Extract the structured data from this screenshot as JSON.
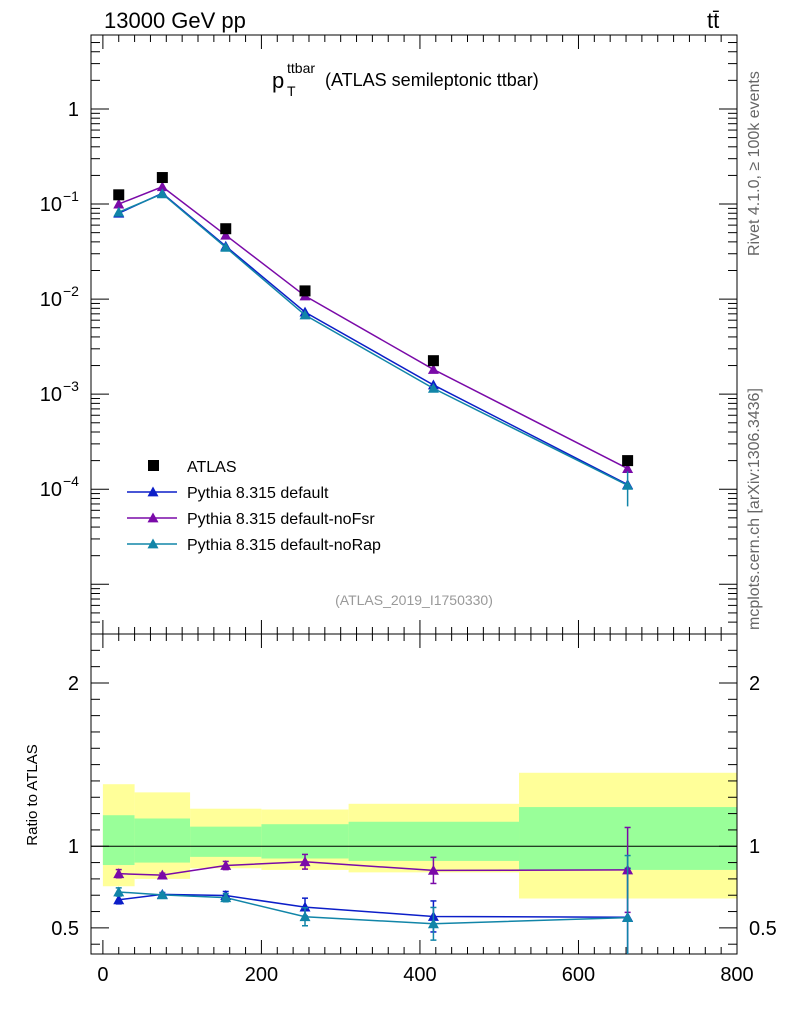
{
  "header": {
    "left": "13000 GeV pp",
    "right": "tt̄"
  },
  "sidebar": {
    "rivet": "Rivet 4.1.0, ≥ 100k events",
    "mcplots": "mcplots.cern.ch [arXiv:1306.3436]"
  },
  "chart_data": {
    "type": "line",
    "title_main": "p",
    "title_sup": "ttbar",
    "title_sub": "T",
    "title_rest": "(ATLAS semileptonic ttbar)",
    "analysis_label": "(ATLAS_2019_I1750330)",
    "xlim": [
      -15,
      800
    ],
    "xticks": [
      0,
      200,
      400,
      600,
      800
    ],
    "xtick_labels": [
      "0",
      "200",
      "400",
      "600",
      "800"
    ],
    "ylim_top": [
      3e-06,
      6
    ],
    "ytick_labels_top": [
      "10^-4",
      "10^-3",
      "10^-2",
      "10^-1",
      "1"
    ],
    "ytick_values_top": [
      0.0001,
      0.001,
      0.01,
      0.1,
      1
    ],
    "ylim_ratio": [
      0.34,
      2.3
    ],
    "yticks_ratio": [
      0.5,
      1,
      2
    ],
    "ytick_labels_ratio": [
      "0.5",
      "1",
      "2"
    ],
    "ratio_ylabel": "Ratio to ATLAS",
    "bins": [
      {
        "lo": 0,
        "hi": 40
      },
      {
        "lo": 40,
        "hi": 110
      },
      {
        "lo": 110,
        "hi": 200
      },
      {
        "lo": 200,
        "hi": 310
      },
      {
        "lo": 310,
        "hi": 525
      },
      {
        "lo": 525,
        "hi": 800
      }
    ],
    "x": [
      20,
      75,
      155,
      255,
      417,
      662
    ],
    "data": {
      "name": "ATLAS",
      "color": "#000000",
      "values": [
        0.125,
        0.19,
        0.055,
        0.0122,
        0.00225,
        0.0002
      ]
    },
    "series": [
      {
        "name": "Pythia 8.315 default",
        "color": "#0c1ec8",
        "values": [
          0.08,
          0.13,
          0.036,
          0.0073,
          0.00125,
          0.000112
        ],
        "ratio": [
          0.672,
          0.705,
          0.698,
          0.627,
          0.57,
          0.565
        ],
        "ratio_err": [
          0.025,
          0.012,
          0.025,
          0.055,
          0.095,
          0.3
        ]
      },
      {
        "name": "Pythia 8.315 default-noFsr",
        "color": "#7a0aa8",
        "values": [
          0.1,
          0.152,
          0.047,
          0.0108,
          0.00182,
          0.000165
        ],
        "ratio": [
          0.832,
          0.823,
          0.882,
          0.905,
          0.852,
          0.855
        ],
        "ratio_err": [
          0.025,
          0.012,
          0.025,
          0.045,
          0.08,
          0.26
        ]
      },
      {
        "name": "Pythia 8.315 default-noRap",
        "color": "#1185a8",
        "values": [
          0.082,
          0.128,
          0.035,
          0.0068,
          0.00115,
          0.00011
        ],
        "ratio": [
          0.72,
          0.702,
          0.685,
          0.568,
          0.525,
          0.563
        ],
        "ratio_err": [
          0.025,
          0.012,
          0.025,
          0.055,
          0.1,
          0.38
        ]
      }
    ],
    "bands": {
      "outer_color": "#ffff99",
      "inner_color": "#99ff99",
      "inner": [
        [
          0.885,
          1.19
        ],
        [
          0.9,
          1.17
        ],
        [
          0.935,
          1.12
        ],
        [
          0.925,
          1.135
        ],
        [
          0.91,
          1.15
        ],
        [
          0.855,
          1.24
        ]
      ],
      "outer": [
        [
          0.755,
          1.38
        ],
        [
          0.8,
          1.33
        ],
        [
          0.865,
          1.23
        ],
        [
          0.855,
          1.225
        ],
        [
          0.84,
          1.26
        ],
        [
          0.68,
          1.45
        ]
      ]
    }
  }
}
